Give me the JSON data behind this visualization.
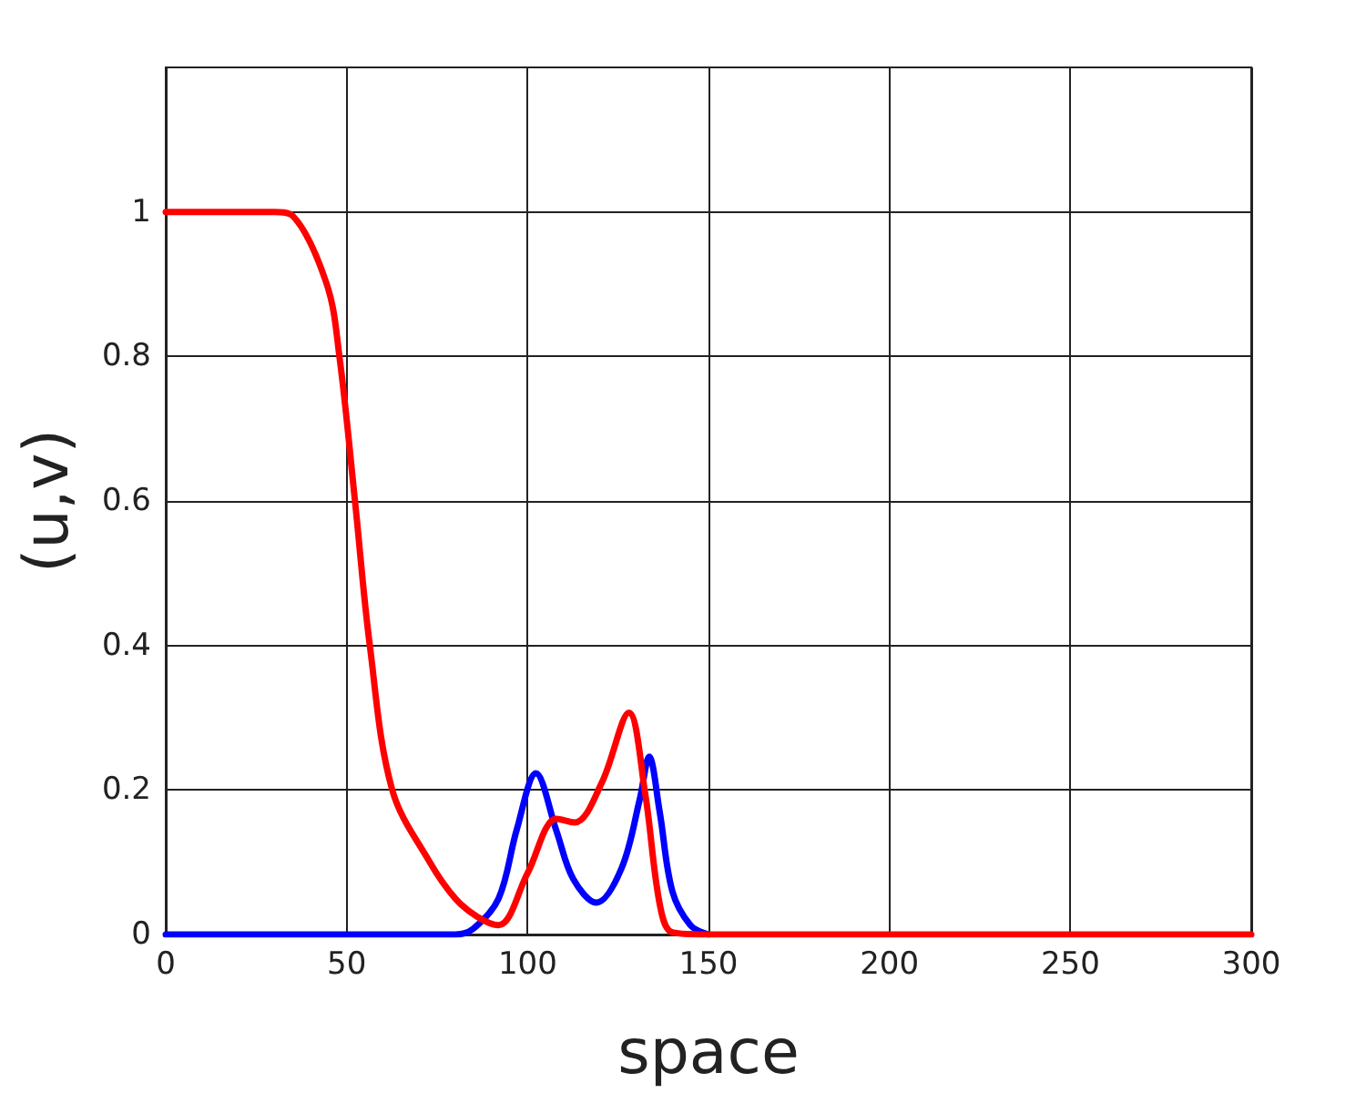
{
  "chart_data": {
    "type": "line",
    "xlabel": "space",
    "ylabel": "(u,v)",
    "xlim": [
      0,
      300
    ],
    "xticks": [
      0,
      50,
      100,
      150,
      200,
      250,
      300
    ],
    "ylim": [
      0,
      1.2
    ],
    "yticks": [
      0,
      0.2,
      0.4,
      0.6,
      0.8,
      1
    ],
    "grid": true,
    "marker": "none",
    "line_style": "solid",
    "series": [
      {
        "color": "#0000ff",
        "x": [
          0,
          50,
          80,
          85,
          92,
          97,
          102.3,
          108,
          112.6,
          119,
          126,
          131,
          133.6,
          136.5,
          140,
          145,
          150
        ],
        "values": [
          0,
          0,
          0,
          0.008,
          0.05,
          0.145,
          0.223,
          0.143,
          0.077,
          0.044,
          0.092,
          0.187,
          0.246,
          0.17,
          0.06,
          0.013,
          0
        ]
      },
      {
        "color": "#ff0000",
        "x": [
          0,
          30,
          35,
          44.5,
          48,
          52.3,
          56.4,
          62.6,
          73,
          80,
          86,
          92,
          100,
          108,
          113,
          120.5,
          128,
          132.5,
          136.6,
          140,
          150,
          200,
          250,
          300
        ],
        "values": [
          1,
          1,
          0.995,
          0.9,
          0.8,
          0.6,
          0.4,
          0.2,
          0.1,
          0.05,
          0.025,
          0.013,
          0.085,
          0.16,
          0.155,
          0.21,
          0.307,
          0.195,
          0.04,
          0.003,
          0,
          0,
          0,
          0
        ]
      }
    ]
  }
}
